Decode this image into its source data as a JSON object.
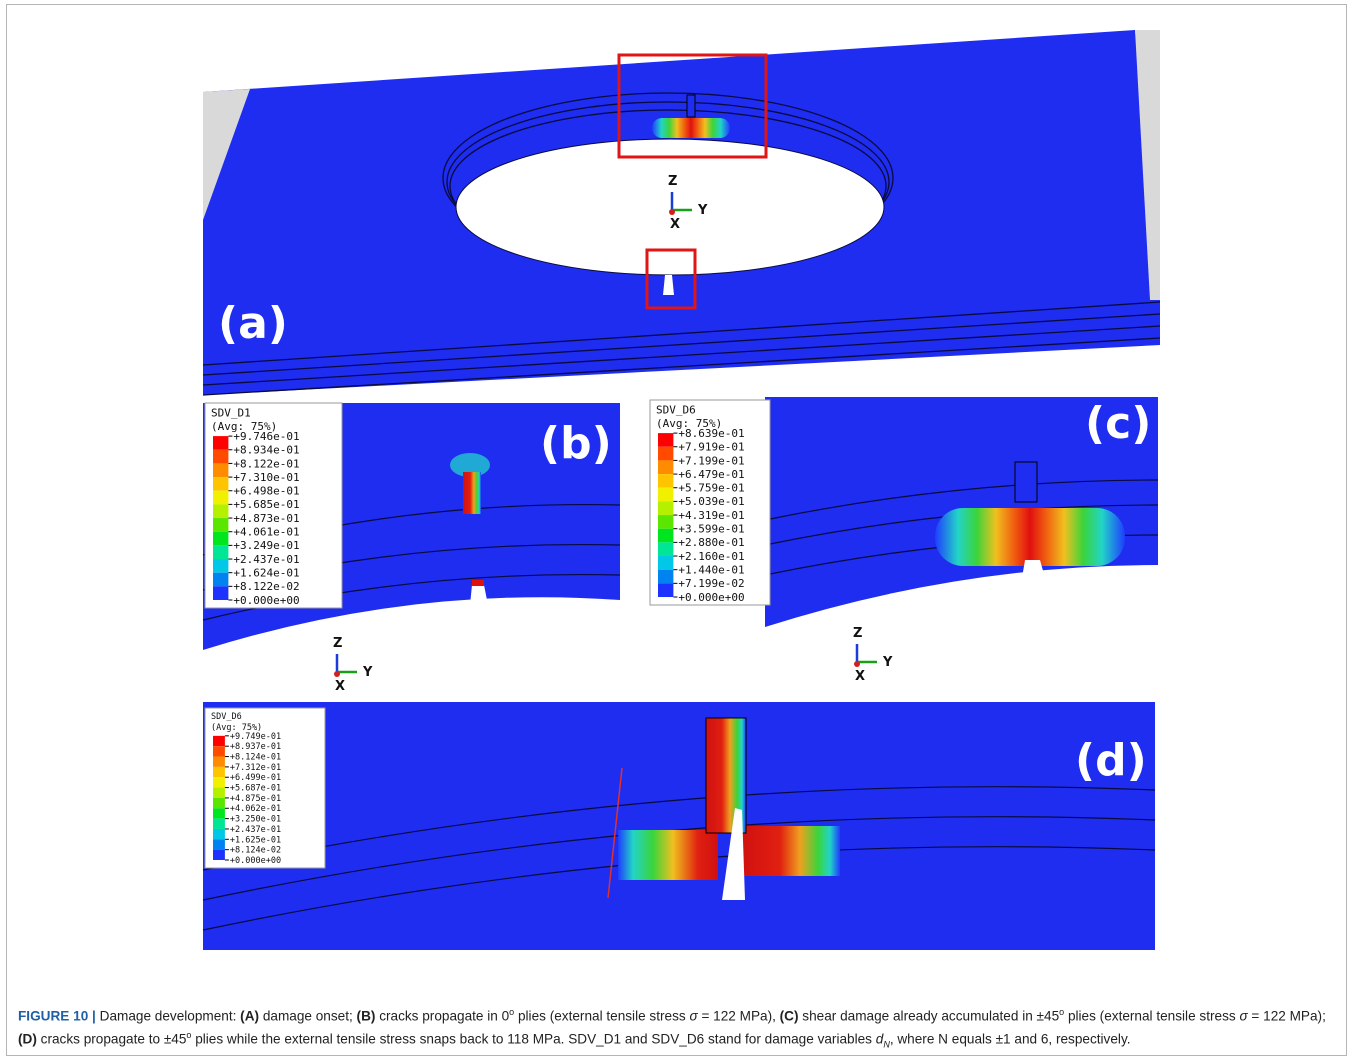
{
  "panels": [
    {
      "label": "(a)"
    },
    {
      "label": "(b)"
    },
    {
      "label": "(c)"
    },
    {
      "label": "(d)"
    }
  ],
  "triads": [
    {
      "z": "Z",
      "y": "Y",
      "x": "X"
    },
    {
      "z": "Z",
      "y": "Y",
      "x": "X"
    },
    {
      "z": "Z",
      "y": "Y",
      "x": "X"
    }
  ],
  "legends": [
    {
      "title": "SDV_D1",
      "subtitle": "(Avg: 75%)",
      "values": [
        "+9.746e-01",
        "+8.934e-01",
        "+8.122e-01",
        "+7.310e-01",
        "+6.498e-01",
        "+5.685e-01",
        "+4.873e-01",
        "+4.061e-01",
        "+3.249e-01",
        "+2.437e-01",
        "+1.624e-01",
        "+8.122e-02",
        "+0.000e+00"
      ]
    },
    {
      "title": "SDV_D6",
      "subtitle": "(Avg: 75%)",
      "values": [
        "+8.639e-01",
        "+7.919e-01",
        "+7.199e-01",
        "+6.479e-01",
        "+5.759e-01",
        "+5.039e-01",
        "+4.319e-01",
        "+3.599e-01",
        "+2.880e-01",
        "+2.160e-01",
        "+1.440e-01",
        "+7.199e-02",
        "+0.000e+00"
      ]
    },
    {
      "title": "SDV_D6",
      "subtitle": "(Avg: 75%)",
      "values": [
        "+9.749e-01",
        "+8.937e-01",
        "+8.124e-01",
        "+7.312e-01",
        "+6.499e-01",
        "+5.687e-01",
        "+4.875e-01",
        "+4.062e-01",
        "+3.250e-01",
        "+2.437e-01",
        "+1.625e-01",
        "+8.124e-02",
        "+0.000e+00"
      ]
    }
  ],
  "caption": [
    "FIGURE 10 |",
    " Damage development: ",
    "(A)",
    " damage onset; ",
    "(B)",
    " cracks propagate in 0",
    "o",
    " plies (external tensile stress ",
    "σ",
    " = 122 MPa), ",
    "(C)",
    " shear damage already accumulated in ±45",
    "o",
    " plies (external tensile stress ",
    "σ",
    " = 122 MPa); ",
    "(D)",
    " cracks propagate to ±45",
    "o",
    " plies while the external tensile stress snaps back to 118 MPa. SDV_D1 and SDV_D6 stand for damage variables ",
    "d",
    "N",
    ", where N equals ±1 and 6, respectively."
  ]
}
